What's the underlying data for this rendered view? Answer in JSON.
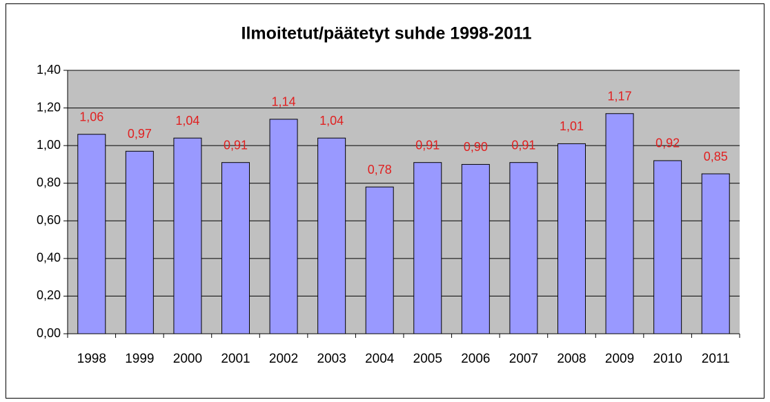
{
  "chart_data": {
    "type": "bar",
    "title": "Ilmoitetut/päätetyt suhde 1998-2011",
    "categories": [
      "1998",
      "1999",
      "2000",
      "2001",
      "2002",
      "2003",
      "2004",
      "2005",
      "2006",
      "2007",
      "2008",
      "2009",
      "2010",
      "2011"
    ],
    "values": [
      1.06,
      0.97,
      1.04,
      0.91,
      1.14,
      1.04,
      0.78,
      0.91,
      0.9,
      0.91,
      1.01,
      1.17,
      0.92,
      0.85
    ],
    "value_labels": [
      "1,06",
      "0,97",
      "1,04",
      "0,91",
      "1,14",
      "1,04",
      "0,78",
      "0,91",
      "0,90",
      "0,91",
      "1,01",
      "1,17",
      "0,92",
      "0,85"
    ],
    "color": "#9999ff",
    "label_color": "#e02020",
    "plot_background": "#c0c0c0",
    "ylim": [
      0,
      1.4
    ],
    "yticks": [
      {
        "value": 0,
        "label": "0,00"
      },
      {
        "value": 0.2,
        "label": "0,20"
      },
      {
        "value": 0.4,
        "label": "0,40"
      },
      {
        "value": 0.6,
        "label": "0,60"
      },
      {
        "value": 0.8,
        "label": "0,80"
      },
      {
        "value": 1.0,
        "label": "1,00"
      },
      {
        "value": 1.2,
        "label": "1,20"
      },
      {
        "value": 1.4,
        "label": "1,40"
      }
    ],
    "grid": true
  }
}
